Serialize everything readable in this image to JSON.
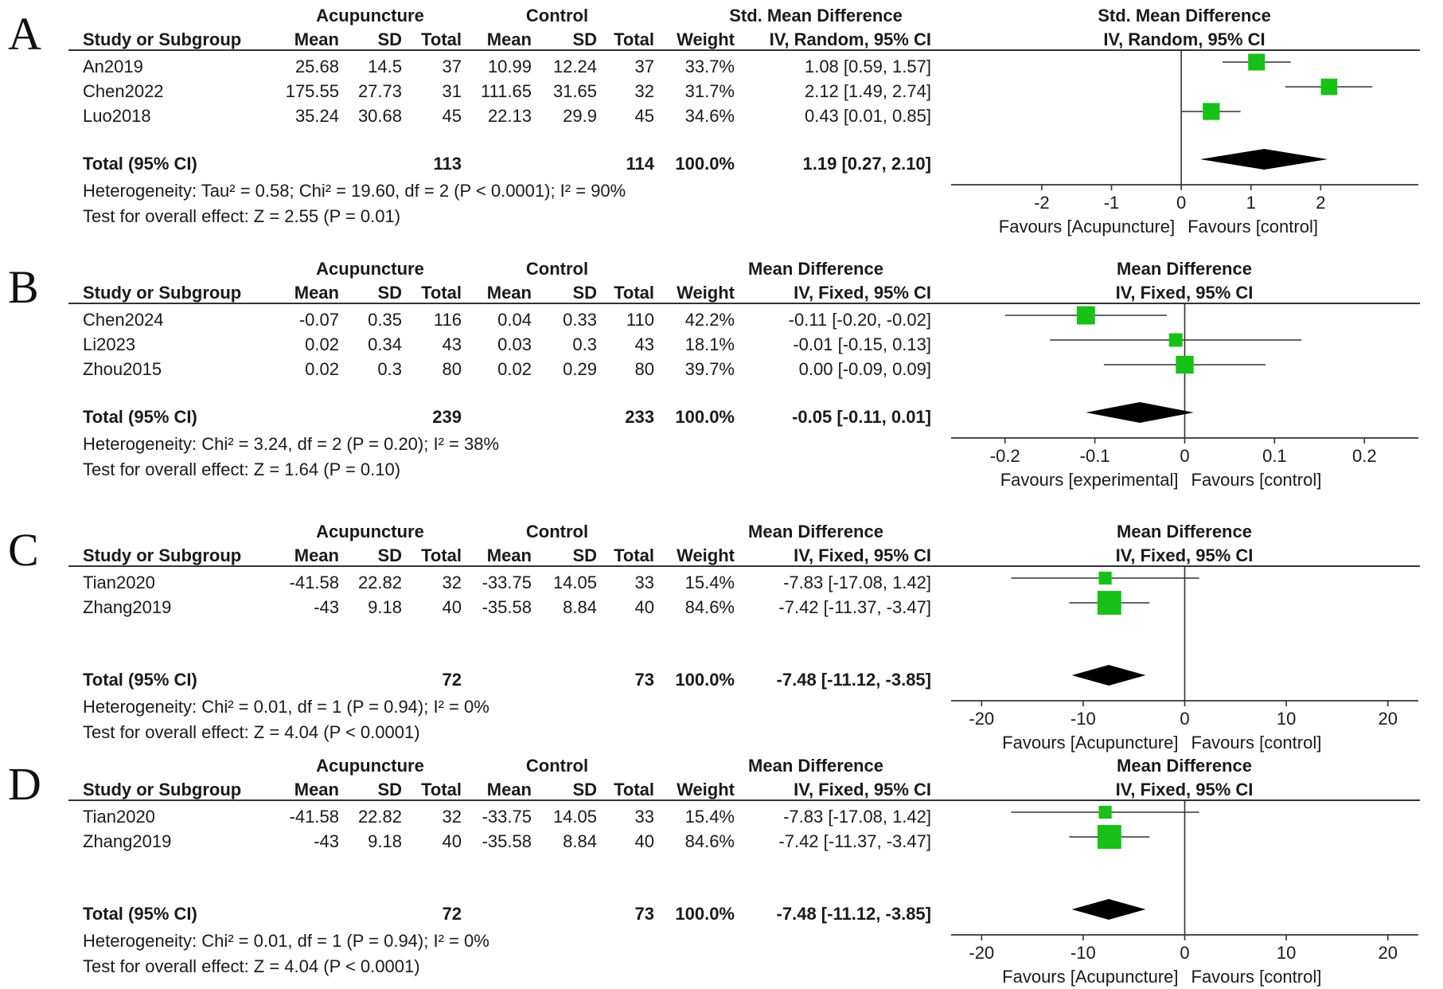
{
  "chart_data": [
    {
      "type": "forest",
      "label": "A",
      "measure": "Std. Mean Difference",
      "method": "IV, Random, 95% CI",
      "groups": [
        "Acupuncture",
        "Control"
      ],
      "col_headers": {
        "study": "Study or Subgroup",
        "mean": "Mean",
        "sd": "SD",
        "total": "Total",
        "weight": "Weight",
        "ci": "IV, Random, 95% CI"
      },
      "studies": [
        {
          "name": "An2019",
          "exp_mean": "25.68",
          "exp_sd": "14.5",
          "exp_total": "37",
          "ctl_mean": "10.99",
          "ctl_sd": "12.24",
          "ctl_total": "37",
          "weight": "33.7%",
          "ci_text": "1.08 [0.59, 1.57]",
          "est": 1.08,
          "lo": 0.59,
          "hi": 1.57,
          "w": 33.7
        },
        {
          "name": "Chen2022",
          "exp_mean": "175.55",
          "exp_sd": "27.73",
          "exp_total": "31",
          "ctl_mean": "111.65",
          "ctl_sd": "31.65",
          "ctl_total": "32",
          "weight": "31.7%",
          "ci_text": "2.12 [1.49, 2.74]",
          "est": 2.12,
          "lo": 1.49,
          "hi": 2.74,
          "w": 31.7
        },
        {
          "name": "Luo2018",
          "exp_mean": "35.24",
          "exp_sd": "30.68",
          "exp_total": "45",
          "ctl_mean": "22.13",
          "ctl_sd": "29.9",
          "ctl_total": "45",
          "weight": "34.6%",
          "ci_text": "0.43 [0.01, 0.85]",
          "est": 0.43,
          "lo": 0.01,
          "hi": 0.85,
          "w": 34.6
        }
      ],
      "total": {
        "label": "Total (95% CI)",
        "exp_total": "113",
        "ctl_total": "114",
        "weight": "100.0%",
        "ci_text": "1.19 [0.27, 2.10]",
        "est": 1.19,
        "lo": 0.27,
        "hi": 2.1
      },
      "heterogeneity": "Heterogeneity: Tau² = 0.58; Chi² = 19.60, df = 2 (P < 0.0001); I² = 90%",
      "overall_effect": "Test for overall effect: Z = 2.55 (P = 0.01)",
      "axis": {
        "min": -3.3,
        "max": 3.4,
        "ticks": [
          -2,
          -1,
          0,
          1,
          2
        ],
        "tick_labels": [
          "-2",
          "-1",
          "0",
          "1",
          "2"
        ]
      },
      "favours_left": "Favours [Acupuncture]",
      "favours_right": "Favours [control]"
    },
    {
      "type": "forest",
      "label": "B",
      "measure": "Mean Difference",
      "method": "IV, Fixed, 95% CI",
      "groups": [
        "Acupuncture",
        "Control"
      ],
      "col_headers": {
        "study": "Study or Subgroup",
        "mean": "Mean",
        "sd": "SD",
        "total": "Total",
        "weight": "Weight",
        "ci": "IV, Fixed, 95% CI"
      },
      "studies": [
        {
          "name": "Chen2024",
          "exp_mean": "-0.07",
          "exp_sd": "0.35",
          "exp_total": "116",
          "ctl_mean": "0.04",
          "ctl_sd": "0.33",
          "ctl_total": "110",
          "weight": "42.2%",
          "ci_text": "-0.11 [-0.20, -0.02]",
          "est": -0.11,
          "lo": -0.2,
          "hi": -0.02,
          "w": 42.2
        },
        {
          "name": "Li2023",
          "exp_mean": "0.02",
          "exp_sd": "0.34",
          "exp_total": "43",
          "ctl_mean": "0.03",
          "ctl_sd": "0.3",
          "ctl_total": "43",
          "weight": "18.1%",
          "ci_text": "-0.01 [-0.15, 0.13]",
          "est": -0.01,
          "lo": -0.15,
          "hi": 0.13,
          "w": 18.1
        },
        {
          "name": "Zhou2015",
          "exp_mean": "0.02",
          "exp_sd": "0.3",
          "exp_total": "80",
          "ctl_mean": "0.02",
          "ctl_sd": "0.29",
          "ctl_total": "80",
          "weight": "39.7%",
          "ci_text": "0.00 [-0.09, 0.09]",
          "est": 0.0,
          "lo": -0.09,
          "hi": 0.09,
          "w": 39.7
        }
      ],
      "total": {
        "label": "Total (95% CI)",
        "exp_total": "239",
        "ctl_total": "233",
        "weight": "100.0%",
        "ci_text": "-0.05 [-0.11, 0.01]",
        "est": -0.05,
        "lo": -0.11,
        "hi": 0.01
      },
      "heterogeneity": "Heterogeneity: Chi² = 3.24, df = 2 (P = 0.20); I² = 38%",
      "overall_effect": "Test for overall effect: Z = 1.64 (P = 0.10)",
      "axis": {
        "min": -0.26,
        "max": 0.26,
        "ticks": [
          -0.2,
          -0.1,
          0,
          0.1,
          0.2
        ],
        "tick_labels": [
          "-0.2",
          "-0.1",
          "0",
          "0.1",
          "0.2"
        ]
      },
      "favours_left": "Favours [experimental]",
      "favours_right": "Favours [control]"
    },
    {
      "type": "forest",
      "label": "C",
      "measure": "Mean Difference",
      "method": "IV, Fixed, 95% CI",
      "groups": [
        "Acupuncture",
        "Control"
      ],
      "col_headers": {
        "study": "Study or Subgroup",
        "mean": "Mean",
        "sd": "SD",
        "total": "Total",
        "weight": "Weight",
        "ci": "IV, Fixed, 95% CI"
      },
      "studies": [
        {
          "name": "Tian2020",
          "exp_mean": "-41.58",
          "exp_sd": "22.82",
          "exp_total": "32",
          "ctl_mean": "-33.75",
          "ctl_sd": "14.05",
          "ctl_total": "33",
          "weight": "15.4%",
          "ci_text": "-7.83 [-17.08, 1.42]",
          "est": -7.83,
          "lo": -17.08,
          "hi": 1.42,
          "w": 15.4
        },
        {
          "name": "Zhang2019",
          "exp_mean": "-43",
          "exp_sd": "9.18",
          "exp_total": "40",
          "ctl_mean": "-35.58",
          "ctl_sd": "8.84",
          "ctl_total": "40",
          "weight": "84.6%",
          "ci_text": "-7.42 [-11.37, -3.47]",
          "est": -7.42,
          "lo": -11.37,
          "hi": -3.47,
          "w": 84.6
        }
      ],
      "total": {
        "label": "Total (95% CI)",
        "exp_total": "72",
        "ctl_total": "73",
        "weight": "100.0%",
        "ci_text": "-7.48 [-11.12, -3.85]",
        "est": -7.48,
        "lo": -11.12,
        "hi": -3.85
      },
      "heterogeneity": "Heterogeneity: Chi² = 0.01, df = 1 (P = 0.94); I² = 0%",
      "overall_effect": "Test for overall effect: Z = 4.04 (P < 0.0001)",
      "axis": {
        "min": -23,
        "max": 23,
        "ticks": [
          -20,
          -10,
          0,
          10,
          20
        ],
        "tick_labels": [
          "-20",
          "-10",
          "0",
          "10",
          "20"
        ]
      },
      "favours_left": "Favours [Acupuncture]",
      "favours_right": "Favours [control]"
    },
    {
      "type": "forest",
      "label": "D",
      "measure": "Mean Difference",
      "method": "IV, Fixed, 95% CI",
      "groups": [
        "Acupuncture",
        "Control"
      ],
      "col_headers": {
        "study": "Study or Subgroup",
        "mean": "Mean",
        "sd": "SD",
        "total": "Total",
        "weight": "Weight",
        "ci": "IV, Fixed, 95% CI"
      },
      "studies": [
        {
          "name": "Tian2020",
          "exp_mean": "-41.58",
          "exp_sd": "22.82",
          "exp_total": "32",
          "ctl_mean": "-33.75",
          "ctl_sd": "14.05",
          "ctl_total": "33",
          "weight": "15.4%",
          "ci_text": "-7.83 [-17.08, 1.42]",
          "est": -7.83,
          "lo": -17.08,
          "hi": 1.42,
          "w": 15.4
        },
        {
          "name": "Zhang2019",
          "exp_mean": "-43",
          "exp_sd": "9.18",
          "exp_total": "40",
          "ctl_mean": "-35.58",
          "ctl_sd": "8.84",
          "ctl_total": "40",
          "weight": "84.6%",
          "ci_text": "-7.42 [-11.37, -3.47]",
          "est": -7.42,
          "lo": -11.37,
          "hi": -3.47,
          "w": 84.6
        }
      ],
      "total": {
        "label": "Total (95% CI)",
        "exp_total": "72",
        "ctl_total": "73",
        "weight": "100.0%",
        "ci_text": "-7.48 [-11.12, -3.85]",
        "est": -7.48,
        "lo": -11.12,
        "hi": -3.85
      },
      "heterogeneity": "Heterogeneity: Chi² = 0.01, df = 1 (P = 0.94); I² = 0%",
      "overall_effect": "Test for overall effect: Z = 4.04 (P < 0.0001)",
      "axis": {
        "min": -23,
        "max": 23,
        "ticks": [
          -20,
          -10,
          0,
          10,
          20
        ],
        "tick_labels": [
          "-20",
          "-10",
          "0",
          "10",
          "20"
        ]
      },
      "favours_left": "Favours [Acupuncture]",
      "favours_right": "Favours [control]"
    }
  ],
  "colors": {
    "study_marker": "#18c118",
    "summary_diamond": "#000000",
    "line": "#333333",
    "text": "#1a1a1a"
  }
}
